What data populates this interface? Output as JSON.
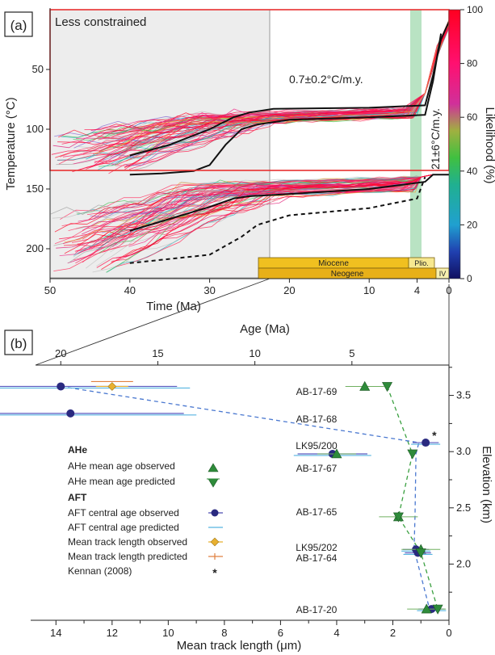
{
  "chart_data": [
    {
      "type": "line",
      "panel_label": "(a)",
      "region_label": "Less constrained",
      "xlabel": "Time (Ma)",
      "ylabel": "Temperature (°C)",
      "xlim": [
        50,
        0
      ],
      "ylim": [
        0,
        225
      ],
      "x_ticks": [
        "50",
        "40",
        "30",
        "20",
        "10",
        "4",
        "0"
      ],
      "y_ticks": [
        "50",
        "100",
        "150",
        "200"
      ],
      "annotations": [
        "0.7±0.2°C/m.y.",
        "21±6°C/m.y."
      ],
      "colorbar": {
        "label": "Likelihood (%)",
        "ticks": [
          "100",
          "80",
          "60",
          "40",
          "20",
          "0"
        ]
      },
      "timescale": {
        "epochs": [
          "Miocene",
          "Plio."
        ],
        "periods": [
          "Neogene",
          "IV"
        ]
      },
      "series": [
        {
          "role": "upper-best",
          "x": [
            40,
            35,
            30,
            27,
            25,
            22,
            10,
            3,
            2,
            1,
            0
          ],
          "y": [
            122,
            113,
            100,
            90,
            86,
            83,
            82,
            80,
            55,
            25,
            10
          ]
        },
        {
          "role": "upper-weighted",
          "x": [
            40,
            36,
            34,
            32,
            30,
            28,
            26,
            24,
            20,
            10,
            3,
            2,
            1
          ],
          "y": [
            138,
            137,
            136,
            135,
            130,
            113,
            100,
            96,
            92,
            90,
            88,
            60,
            20
          ]
        },
        {
          "role": "lower-best",
          "x": [
            40,
            35,
            30,
            27,
            25,
            22,
            10,
            3,
            2,
            0
          ],
          "y": [
            185,
            175,
            165,
            158,
            156,
            155,
            150,
            144,
            138,
            138
          ]
        },
        {
          "role": "lower-envelope-dashed",
          "x": [
            40,
            30,
            26,
            24,
            20,
            10,
            4,
            3
          ],
          "y": [
            212,
            205,
            190,
            180,
            172,
            166,
            158,
            140
          ]
        }
      ]
    },
    {
      "type": "scatter",
      "panel_label": "(b)",
      "x2label": "Age (Ma)",
      "x2_ticks": [
        "20",
        "15",
        "10",
        "5"
      ],
      "xlabel": "Mean track length (μm)",
      "x_ticks": [
        "14",
        "12",
        "10",
        "8",
        "6",
        "4",
        "2",
        "0"
      ],
      "ylabel": "Elevation (km)",
      "y_ticks": [
        "3.5",
        "3.0",
        "2.5",
        "2.0"
      ],
      "samples": [
        {
          "name": "AB-17-69",
          "elevation": 3.58,
          "aft_age": 20.0,
          "ahe_obs": 3.0,
          "ahe_pred": 2.2,
          "mtl_obs": 12.0
        },
        {
          "name": "AB-17-68",
          "elevation": 3.34,
          "aft_age": 19.5
        },
        {
          "name": "LK95/200",
          "elevation": 3.08,
          "aft_age": 1.2
        },
        {
          "name": "AB-17-67",
          "elevation": 2.98,
          "aft_age": 6.0,
          "ahe_obs": 4.0,
          "ahe_pred": 1.3
        },
        {
          "name": "AB-17-65",
          "elevation": 2.42,
          "ahe_obs": 1.8,
          "ahe_pred": 1.8
        },
        {
          "name": "LK95/202",
          "elevation": 2.13,
          "aft_age": 1.7,
          "ahe_obs": 1.0
        },
        {
          "name": "AB-17-64",
          "elevation": 2.1,
          "aft_age": 1.6,
          "ahe_pred": 1.0
        },
        {
          "name": "AB-17-20",
          "elevation": 1.6,
          "aft_age": 0.9,
          "ahe_obs": 0.8,
          "ahe_pred": 0.4
        }
      ],
      "legend": {
        "ahe_title": "AHe",
        "ahe_obs": "AHe mean age observed",
        "ahe_pred": "AHe mean age predicted",
        "aft_title": "AFT",
        "aft_obs": "AFT central age observed",
        "aft_pred": "AFT central age predicted",
        "mtl_obs": "Mean track length observed",
        "mtl_pred": "Mean track length predicted",
        "kennan": "Kennan (2008)"
      },
      "colors": {
        "ahe": "#2e8b3a",
        "aft": "#2a2a80",
        "aft_pred": "#56b4e0",
        "mtl_obs": "#e8b030",
        "mtl_pred": "#e08040",
        "ahe_dash": "#3aa040",
        "aft_dash": "#4a78d0"
      }
    }
  ]
}
